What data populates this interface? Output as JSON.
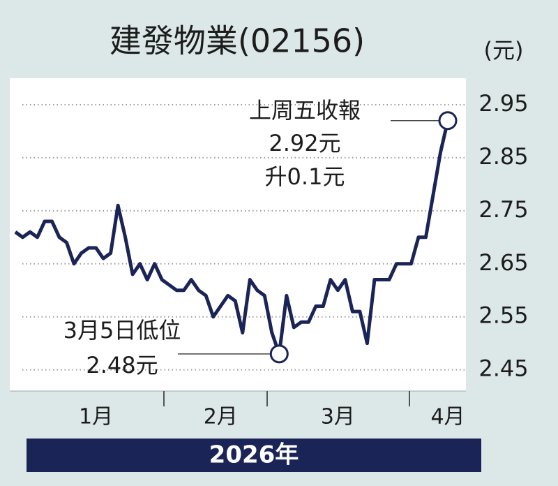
{
  "chart_data": {
    "type": "line",
    "title": "建發物業(02156)",
    "y_unit": "(元)",
    "x_caption": "2026年",
    "categories": [
      null,
      null,
      null,
      null,
      null,
      null,
      null,
      null,
      null,
      null,
      null,
      "1月",
      null,
      null,
      null,
      null,
      null,
      null,
      null,
      null,
      null,
      null,
      null,
      null,
      null,
      null,
      null,
      null,
      "2月",
      null,
      null,
      null,
      null,
      null,
      null,
      null,
      null,
      null,
      null,
      null,
      null,
      null,
      null,
      null,
      "3月",
      null,
      null,
      null,
      null,
      null,
      null,
      null,
      null,
      null,
      null,
      null,
      null,
      null,
      null,
      "4月"
    ],
    "series": [
      {
        "color": "#1b2456",
        "values": [
          2.71,
          2.7,
          2.71,
          2.7,
          2.73,
          2.73,
          2.7,
          2.69,
          2.65,
          2.67,
          2.68,
          2.68,
          2.66,
          2.67,
          2.76,
          2.7,
          2.63,
          2.65,
          2.62,
          2.65,
          2.62,
          2.61,
          2.6,
          2.6,
          2.62,
          2.6,
          2.59,
          2.55,
          2.57,
          2.59,
          2.58,
          2.52,
          2.62,
          2.6,
          2.59,
          2.52,
          2.48,
          2.59,
          2.53,
          2.54,
          2.54,
          2.57,
          2.57,
          2.62,
          2.6,
          2.62,
          2.56,
          2.56,
          2.5,
          2.62,
          2.62,
          2.62,
          2.65,
          2.65,
          2.65,
          2.7,
          2.7,
          2.78,
          2.86,
          2.92
        ]
      }
    ],
    "ylim": [
      2.41,
      3.0
    ],
    "yticks": [
      2.45,
      2.55,
      2.65,
      2.75,
      2.85,
      2.95
    ],
    "grid": true,
    "annotations": [
      "上周五收報",
      "2.92元",
      "升0.1元",
      "3月5日低位",
      "2.48元"
    ]
  }
}
